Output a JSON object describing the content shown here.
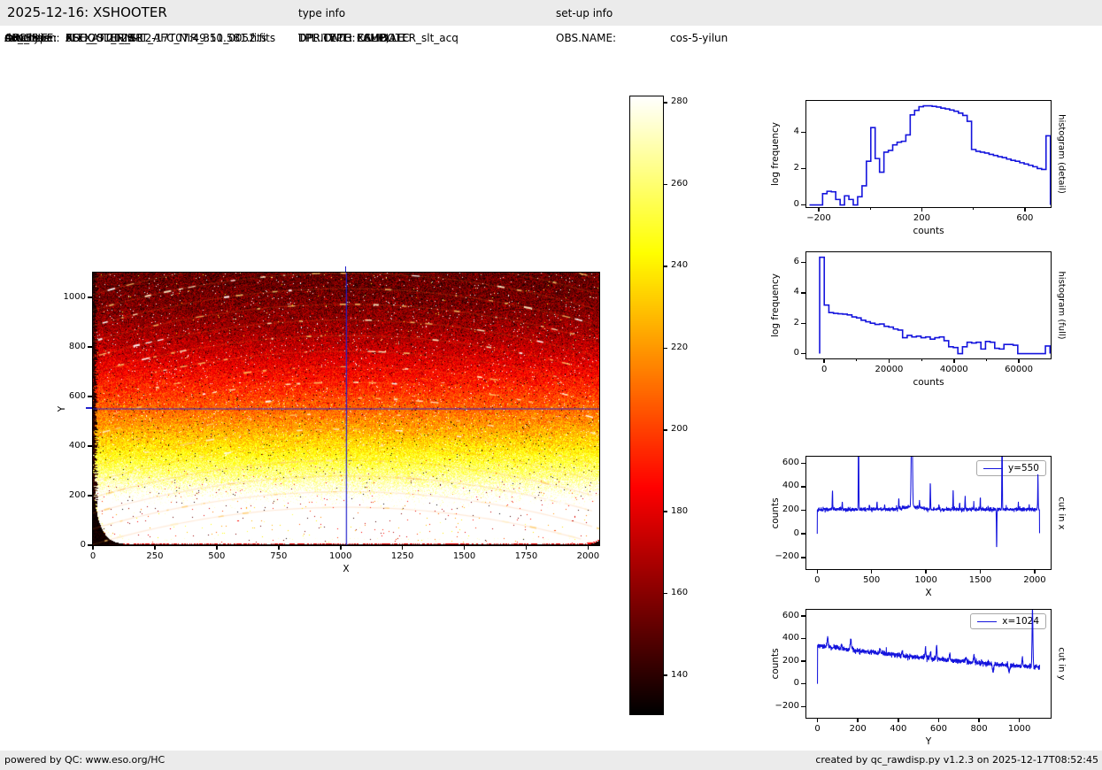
{
  "header": {
    "title": "2025-12-16: XSHOOTER",
    "type_info_label": "type info",
    "setup_info_label": "set-up info"
  },
  "file_info": [
    {
      "label": "ORIGFILE:",
      "value": "XSHOOTER_SLT_AFC_NIR_351_0052.fits"
    },
    {
      "label": "ARCFILE:",
      "value": "XSHOO.2025-12-17T07:49:10.581.fits"
    },
    {
      "label": "raw_type:",
      "value": "FLEX_SLIT_NIR"
    },
    {
      "label": "do_class:",
      "value": "AFC_ATT_NIR"
    },
    {
      "label": "extension:",
      "value": "0"
    }
  ],
  "type_info": [
    {
      "label": "DPR.CATG:",
      "value": "CALIB"
    },
    {
      "label": "DPR.TYPE:",
      "value": "LAMP,AFC"
    },
    {
      "label": "DPR.TECH:",
      "value": "ECHELLE"
    },
    {
      "label": "TPL.ID:",
      "value": "XSHOOTER_slt_acq"
    }
  ],
  "setup_info": [
    {
      "label": "OBS.NAME:",
      "value": "cos-5-yilun"
    }
  ],
  "footer": {
    "left": "powered by QC: www.eso.org/HC",
    "right": "created by qc_rawdisp.py v1.2.3 on 2025-12-17T08:52:45"
  },
  "colors": {
    "line_blue": "#1414dd",
    "crosshair_blue": "#2222cc",
    "strip_bg": "#ebebeb",
    "frame": "#000000"
  },
  "chart_data": {
    "image": {
      "type": "heatmap",
      "xlabel": "X",
      "ylabel": "Y",
      "xlim": [
        0,
        2045
      ],
      "ylim": [
        0,
        1100
      ],
      "xticks": [
        0,
        250,
        500,
        750,
        1000,
        1250,
        1500,
        1750,
        2000
      ],
      "xtick_labels": [
        "0",
        "250",
        "500",
        "750",
        "1000",
        "1250",
        "1500",
        "1750",
        "2000"
      ],
      "yticks": [
        0,
        200,
        400,
        600,
        800,
        1000
      ],
      "ytick_labels": [
        "0",
        "200",
        "400",
        "600",
        "800",
        "1000"
      ],
      "colormap": "hot",
      "vmin": 130.5,
      "vmax": 281.5,
      "crosshair": {
        "x": 1024,
        "y": 550
      },
      "background_profile": {
        "counts_bottom": 342,
        "counts_top": 152,
        "exponent": 1.8,
        "noise_sigma": 9
      },
      "arcs": {
        "center_y_start": 153,
        "center_y_end": 1380,
        "spacing": 63,
        "edge_sag": 150
      },
      "defects": {
        "bottom_left_blob": {
          "x_extent": 110,
          "y_extent": 205
        },
        "bottom_right_blob": {
          "x_extent": 45,
          "y_extent": 16
        },
        "left_edge_band": true
      },
      "seed": 987654
    },
    "colorbar": {
      "type": "colorbar",
      "colormap": "hot",
      "vmin": 130.5,
      "vmax": 281.5,
      "ticks": [
        140,
        160,
        180,
        200,
        220,
        240,
        260,
        280
      ],
      "tick_labels": [
        "140",
        "160",
        "180",
        "200",
        "220",
        "240",
        "260",
        "280"
      ]
    },
    "histogram_detail": {
      "type": "bar",
      "xlabel": "counts",
      "ylabel": "log frequency",
      "right_label": "histogram (detail)",
      "xlim": [
        -248,
        700
      ],
      "ylim": [
        -0.12,
        5.72
      ],
      "xticks": [
        -200,
        200,
        600
      ],
      "xtick_labels": [
        "−200",
        "200",
        "600"
      ],
      "xminor": [
        0,
        400
      ],
      "yticks": [
        0,
        2,
        4
      ],
      "ytick_labels": [
        "0",
        "2",
        "4"
      ],
      "bin_start": -185,
      "bin_width": 17,
      "zero_lead": -236,
      "values": [
        0.62,
        0.75,
        0.72,
        0.3,
        0,
        0.5,
        0.3,
        0,
        0.45,
        1.05,
        2.4,
        4.25,
        2.55,
        1.8,
        2.9,
        3.0,
        3.3,
        3.45,
        3.5,
        3.85,
        4.95,
        5.2,
        5.4,
        5.45,
        5.45,
        5.42,
        5.38,
        5.32,
        5.28,
        5.22,
        5.15,
        5.05,
        4.92,
        4.6,
        3.05,
        2.95,
        2.9,
        2.85,
        2.78,
        2.72,
        2.65,
        2.6,
        2.52,
        2.45,
        2.4,
        2.32,
        2.25,
        2.18,
        2.1,
        2.0,
        1.95,
        3.8
      ]
    },
    "histogram_full": {
      "type": "bar",
      "xlabel": "counts",
      "ylabel": "log frequency",
      "right_label": "histogram (full)",
      "xlim": [
        -5500,
        69800
      ],
      "ylim": [
        -0.32,
        6.68
      ],
      "xticks": [
        0,
        20000,
        40000,
        60000
      ],
      "xtick_labels": [
        "0",
        "20000",
        "40000",
        "60000"
      ],
      "xminor": [
        10000,
        30000,
        50000
      ],
      "yticks": [
        0,
        2,
        4,
        6
      ],
      "ytick_labels": [
        "0",
        "2",
        "4",
        "6"
      ],
      "bin_start": -1400,
      "bin_width": 1420,
      "zero_lead": -1400,
      "values": [
        6.35,
        3.2,
        2.7,
        2.65,
        2.62,
        2.6,
        2.55,
        2.42,
        2.35,
        2.2,
        2.1,
        2.0,
        1.92,
        1.95,
        1.8,
        1.75,
        1.62,
        1.55,
        1.05,
        1.2,
        1.1,
        1.15,
        1.05,
        1.1,
        0.95,
        1.05,
        1.1,
        0.85,
        0.45,
        0.4,
        0,
        0.45,
        0.75,
        0.7,
        0.75,
        0.3,
        0.8,
        0.75,
        0.35,
        0.3,
        0.6,
        0.6,
        0.55,
        0,
        0,
        0,
        0,
        0,
        0,
        0.5
      ]
    },
    "cut_x": {
      "type": "line",
      "xlabel": "X",
      "ylabel": "counts",
      "right_label": "cut in x",
      "legend": "y=550",
      "xlim": [
        -100,
        2147
      ],
      "ylim": [
        -300,
        655
      ],
      "xticks": [
        0,
        500,
        1000,
        1500,
        2000
      ],
      "xtick_labels": [
        "0",
        "500",
        "1000",
        "1500",
        "2000"
      ],
      "yticks": [
        -200,
        0,
        200,
        400,
        600
      ],
      "ytick_labels": [
        "−200",
        "0",
        "200",
        "400",
        "600"
      ],
      "x_data_range": [
        0,
        2045
      ],
      "baseline": {
        "level": 207,
        "bump_center": 880,
        "bump_amp": 22,
        "bump_width": 110
      },
      "noise_sigma": 8,
      "spikes": [
        [
          140,
          165,
          3
        ],
        [
          230,
          60,
          3
        ],
        [
          380,
          900,
          3
        ],
        [
          480,
          45,
          3
        ],
        [
          550,
          60,
          3
        ],
        [
          620,
          45,
          3
        ],
        [
          750,
          95,
          3
        ],
        [
          870,
          1000,
          7
        ],
        [
          940,
          55,
          3
        ],
        [
          1040,
          235,
          3
        ],
        [
          1120,
          45,
          3
        ],
        [
          1250,
          155,
          3
        ],
        [
          1310,
          60,
          3
        ],
        [
          1360,
          105,
          3
        ],
        [
          1440,
          55,
          3
        ],
        [
          1500,
          108,
          3
        ],
        [
          1650,
          -330,
          3
        ],
        [
          1700,
          900,
          3
        ],
        [
          1850,
          45,
          3
        ],
        [
          1950,
          40,
          3
        ],
        [
          2030,
          305,
          3
        ]
      ],
      "endpoints_zero": true,
      "seed": 424242
    },
    "cut_y": {
      "type": "line",
      "xlabel": "Y",
      "ylabel": "counts",
      "right_label": "cut in y",
      "legend": "x=1024",
      "xlim": [
        -55,
        1155
      ],
      "ylim": [
        -300,
        655
      ],
      "xticks": [
        0,
        200,
        400,
        600,
        800,
        1000
      ],
      "xtick_labels": [
        "0",
        "200",
        "400",
        "600",
        "800",
        "1000"
      ],
      "yticks": [
        -200,
        0,
        200,
        400,
        600
      ],
      "ytick_labels": [
        "−200",
        "0",
        "200",
        "400",
        "600"
      ],
      "x_data_range": [
        0,
        1100
      ],
      "baseline": {
        "b0": 338,
        "slope": -0.23,
        "quad": 5e-05
      },
      "noise_sigma": 11,
      "spikes": [
        [
          50,
          85,
          4
        ],
        [
          120,
          45,
          3
        ],
        [
          165,
          95,
          4
        ],
        [
          310,
          48,
          3
        ],
        [
          420,
          40,
          3
        ],
        [
          535,
          95,
          3
        ],
        [
          560,
          50,
          3
        ],
        [
          590,
          118,
          3
        ],
        [
          655,
          62,
          3
        ],
        [
          735,
          42,
          3
        ],
        [
          775,
          58,
          4
        ],
        [
          870,
          -62,
          5
        ],
        [
          950,
          -52,
          4
        ],
        [
          1015,
          72,
          3
        ],
        [
          1065,
          520,
          3
        ]
      ],
      "endpoints_zero": "start",
      "seed": 133731
    }
  }
}
